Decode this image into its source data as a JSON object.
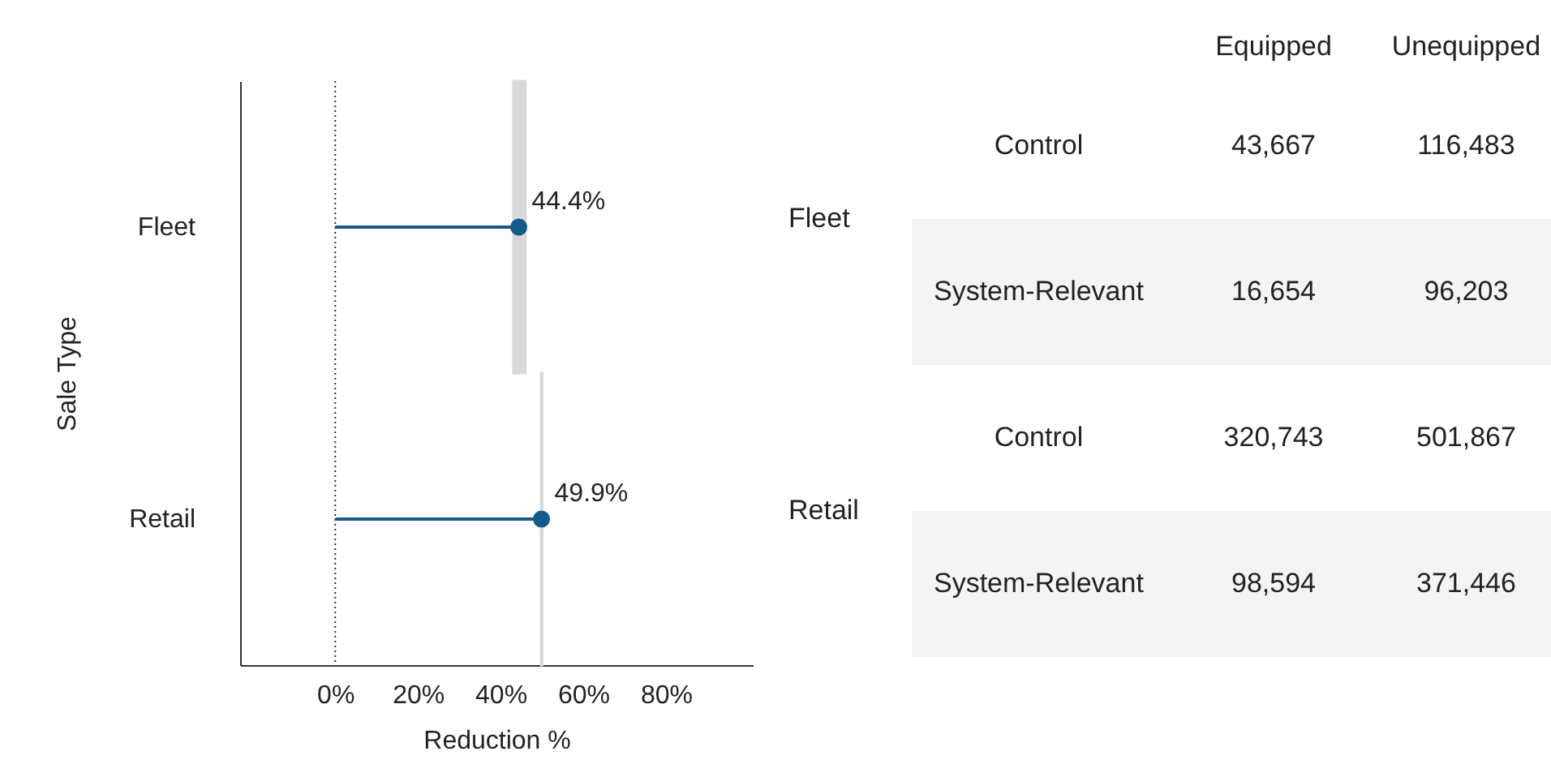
{
  "chart_data": [
    {
      "type": "lollipop",
      "orientation": "horizontal",
      "categories": [
        "Fleet",
        "Retail"
      ],
      "series": [
        {
          "type": "bar",
          "color": "#d9d9d9",
          "base": [
            43.1,
            49.8
          ],
          "values": [
            2.9,
            0.3
          ]
        },
        {
          "color": "#155a8f",
          "values": [
            44.4,
            49.9
          ],
          "value_labels": [
            "44.4%",
            "49.9%"
          ]
        }
      ],
      "xlim": [
        -23,
        101
      ],
      "xticks": [
        {
          "value": 0,
          "label": "0%"
        },
        {
          "value": 20,
          "label": "20%"
        },
        {
          "value": 40,
          "label": "40%"
        },
        {
          "value": 60,
          "label": "60%"
        },
        {
          "value": 80,
          "label": "80%"
        }
      ],
      "xlabel": "Reduction %",
      "ylabel": "Sale Type",
      "ref_lines": [
        {
          "axis": "x",
          "value": 0,
          "color": "#333333",
          "line_style": "dotted"
        }
      ],
      "grid": false
    },
    {
      "type": "other",
      "annotations": [
        "Equipped",
        "Unequipped",
        "Fleet",
        "Control",
        "43,667",
        "116,483",
        "System-Relevant",
        "16,654",
        "96,203",
        "Retail",
        "Control",
        "320,743",
        "501,867",
        "System-Relevant",
        "98,594",
        "371,446"
      ]
    }
  ]
}
